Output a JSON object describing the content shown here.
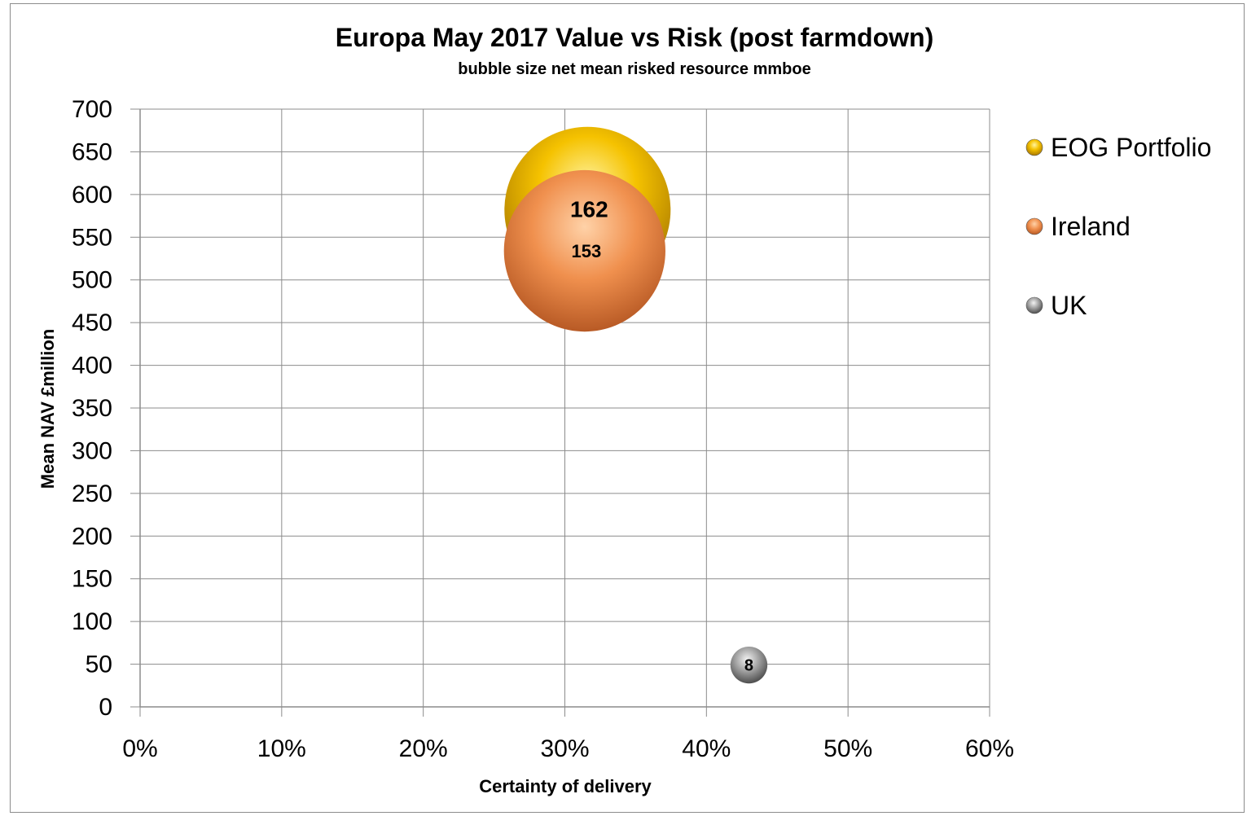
{
  "chart_data": {
    "type": "bubble",
    "title": "Europa May 2017 Value vs Risk (post farmdown)",
    "subtitle": "bubble size  net  mean risked resource  mmboe",
    "xlabel": "Certainty of delivery",
    "ylabel": "Mean NAV £million",
    "xlim": [
      0,
      0.6
    ],
    "ylim": [
      0,
      700
    ],
    "x_ticks": [
      "0%",
      "10%",
      "20%",
      "30%",
      "40%",
      "50%",
      "60%"
    ],
    "y_ticks": [
      "0",
      "50",
      "100",
      "150",
      "200",
      "250",
      "300",
      "350",
      "400",
      "450",
      "500",
      "550",
      "600",
      "650",
      "700"
    ],
    "grid": true,
    "legend_position": "right",
    "series": [
      {
        "name": "EOG Portfolio",
        "color": "#f2b800",
        "points": [
          {
            "x": 0.316,
            "y": 582,
            "size": 162,
            "label": "162"
          }
        ]
      },
      {
        "name": "Ireland",
        "color": "#e8844a",
        "points": [
          {
            "x": 0.314,
            "y": 534,
            "size": 153,
            "label": "153"
          }
        ]
      },
      {
        "name": "UK",
        "color": "#9a9a9a",
        "points": [
          {
            "x": 0.43,
            "y": 49,
            "size": 8,
            "label": "8"
          }
        ]
      }
    ]
  }
}
